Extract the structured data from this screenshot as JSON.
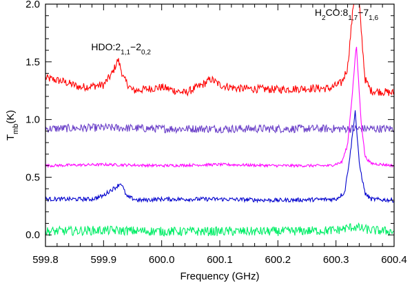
{
  "chart_data": {
    "type": "line",
    "xlabel": "Frequency (GHz)",
    "ylabel": {
      "main": "T",
      "sub": "mb",
      "suffix": "(K)"
    },
    "xlim": [
      599.8,
      600.4
    ],
    "ylim": [
      -0.1,
      2.0
    ],
    "x_ticks": [
      {
        "value": 599.8,
        "label": "599.8"
      },
      {
        "value": 599.9,
        "label": "599.9"
      },
      {
        "value": 600.0,
        "label": "600.0"
      },
      {
        "value": 600.1,
        "label": "600.1"
      },
      {
        "value": 600.2,
        "label": "600.2"
      },
      {
        "value": 600.3,
        "label": "600.3"
      },
      {
        "value": 600.4,
        "label": "600.4"
      }
    ],
    "y_ticks": [
      {
        "value": 0.0,
        "label": "0.0"
      },
      {
        "value": 0.5,
        "label": "0.5"
      },
      {
        "value": 1.0,
        "label": "1.0"
      },
      {
        "value": 1.5,
        "label": "1.5"
      },
      {
        "value": 2.0,
        "label": "2.0"
      }
    ],
    "grid": false,
    "legend": "none",
    "annotations": [
      {
        "id": "hdo",
        "x": 599.93,
        "y": 1.6,
        "text": "HDO:2",
        "sub1": "1,1",
        "mid": "−2",
        "sub2": "0,2"
      },
      {
        "id": "h2co",
        "x": 600.33,
        "y": 1.9,
        "text": "H",
        "subA": "2",
        "rest": "CO:8",
        "sub1": "1,7",
        "mid": "−7",
        "sub2": "1,6"
      }
    ],
    "series": [
      {
        "color": "#ff0000",
        "x": [
          599.8,
          599.83,
          599.86,
          599.9,
          599.915,
          599.925,
          599.935,
          599.95,
          600.0,
          600.04,
          600.07,
          600.085,
          600.1,
          600.13,
          600.2,
          600.25,
          600.29,
          600.31,
          600.32,
          600.33,
          600.335,
          600.34,
          600.35,
          600.36,
          600.38,
          600.4
        ],
        "y": [
          1.36,
          1.33,
          1.28,
          1.3,
          1.4,
          1.52,
          1.35,
          1.25,
          1.28,
          1.23,
          1.3,
          1.35,
          1.3,
          1.27,
          1.26,
          1.27,
          1.27,
          1.32,
          1.45,
          2.0,
          2.15,
          2.0,
          1.35,
          1.25,
          1.24,
          1.23
        ],
        "noise": 0.035
      },
      {
        "color": "#6a3fc8",
        "x": [
          599.8,
          599.9,
          600.0,
          600.1,
          600.2,
          600.3,
          600.4
        ],
        "y": [
          0.92,
          0.93,
          0.92,
          0.92,
          0.92,
          0.92,
          0.92
        ],
        "noise": 0.035
      },
      {
        "color": "#ff00ff",
        "x": [
          599.8,
          599.9,
          600.0,
          600.1,
          600.2,
          600.29,
          600.31,
          600.32,
          600.328,
          600.335,
          600.343,
          600.35,
          600.36,
          600.4
        ],
        "y": [
          0.6,
          0.61,
          0.6,
          0.61,
          0.6,
          0.6,
          0.63,
          0.78,
          1.22,
          1.65,
          1.0,
          0.68,
          0.62,
          0.6
        ],
        "noise": 0.012
      },
      {
        "color": "#0000cd",
        "x": [
          599.8,
          599.88,
          599.9,
          599.91,
          599.92,
          599.93,
          599.94,
          599.96,
          600.0,
          600.1,
          600.2,
          600.3,
          600.315,
          600.325,
          600.333,
          600.34,
          600.35,
          600.36,
          600.4
        ],
        "y": [
          0.31,
          0.31,
          0.34,
          0.38,
          0.41,
          0.45,
          0.33,
          0.3,
          0.31,
          0.31,
          0.3,
          0.31,
          0.37,
          0.72,
          1.08,
          0.62,
          0.36,
          0.31,
          0.3
        ],
        "noise": 0.018
      },
      {
        "color": "#00ee66",
        "x": [
          599.8,
          599.9,
          600.0,
          600.1,
          600.2,
          600.3,
          600.33,
          600.36,
          600.4
        ],
        "y": [
          0.03,
          0.04,
          0.03,
          0.03,
          0.03,
          0.04,
          0.07,
          0.04,
          0.03
        ],
        "noise": 0.04
      }
    ]
  }
}
